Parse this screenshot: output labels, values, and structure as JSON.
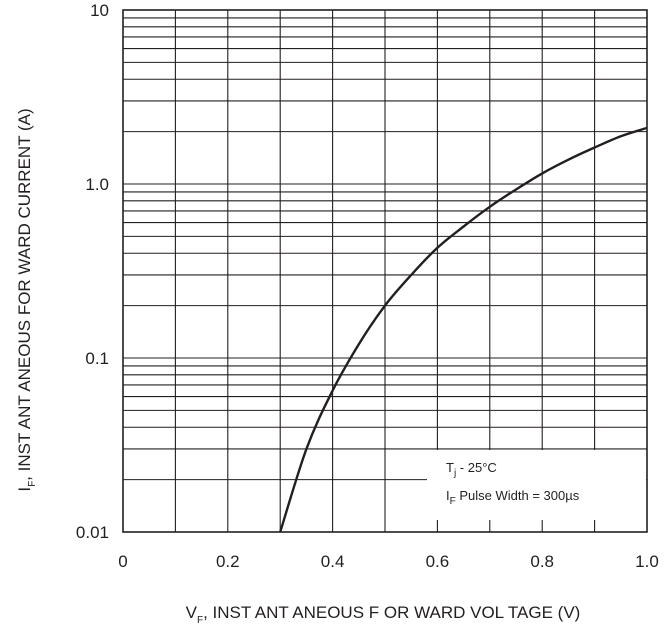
{
  "chart_data": {
    "type": "line",
    "x_axis": {
      "label_main": "V",
      "label_sub": "F",
      "label_rest": ", INST ANT ANEOUS   F OR WARD  VOL TAGE  (V)",
      "range": [
        0,
        1.0
      ],
      "ticks": [
        0,
        0.2,
        0.4,
        0.6,
        0.8,
        1.0
      ],
      "tick_labels": [
        "0",
        "0.2",
        "0.4",
        "0.6",
        "0.8",
        "1.0"
      ]
    },
    "y_axis": {
      "label_main": "I",
      "label_sub": "F",
      "label_rest": ", INST ANT ANEOUS   FOR WARD   CURRENT    (A)",
      "scale": "log",
      "range": [
        0.01,
        10
      ],
      "ticks": [
        0.01,
        0.1,
        1.0,
        10
      ],
      "tick_labels": [
        "0.01",
        "0.1",
        "1.0",
        "10"
      ]
    },
    "grid": true,
    "series": [
      {
        "x": [
          0.3,
          0.35,
          0.4,
          0.45,
          0.5,
          0.55,
          0.6,
          0.65,
          0.7,
          0.75,
          0.8,
          0.85,
          0.9,
          0.95,
          1.0
        ],
        "y": [
          0.01,
          0.03,
          0.065,
          0.12,
          0.2,
          0.3,
          0.43,
          0.57,
          0.74,
          0.93,
          1.15,
          1.38,
          1.62,
          1.88,
          2.1
        ]
      }
    ],
    "annotation": {
      "line1_main": "T",
      "line1_sub": "j",
      "line1_rest": " - 25°C",
      "line2_main": "I",
      "line2_sub": "F",
      "line2_rest": " Pulse Width = 300µs",
      "placement": "bottom-right"
    }
  }
}
